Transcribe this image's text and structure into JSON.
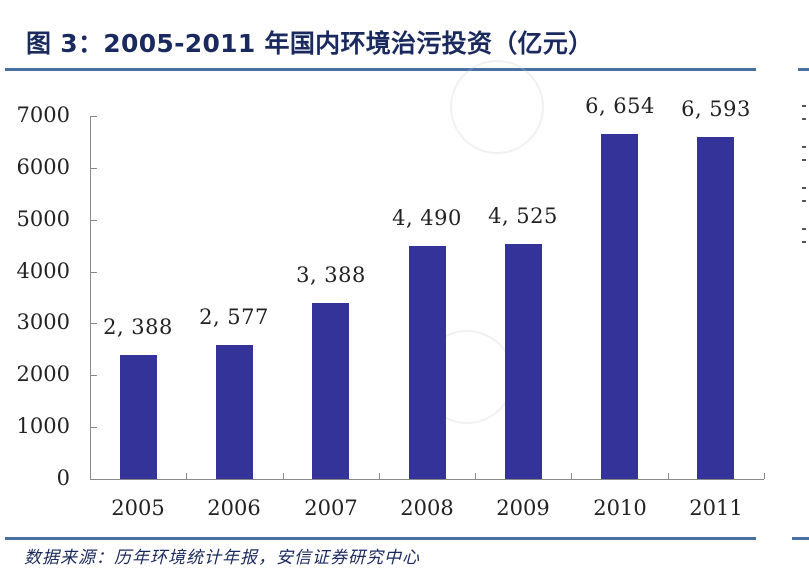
{
  "header": {
    "title": "图 3：2005-2011 年国内环境治污投资（亿元）"
  },
  "footer": {
    "source": "数据来源：历年环境统计年报，安信证券研究中心"
  },
  "colors": {
    "bar": "#333399",
    "rule": "#4a6fa5",
    "title": "#1b2a5e"
  },
  "chart_data": {
    "type": "bar",
    "title": "2005-2011 年国内环境治污投资（亿元）",
    "xlabel": "",
    "ylabel": "亿元",
    "categories": [
      "2005",
      "2006",
      "2007",
      "2008",
      "2009",
      "2010",
      "2011"
    ],
    "values": [
      2388,
      2577,
      3388,
      4490,
      4525,
      6654,
      6593
    ],
    "value_labels": [
      "2, 388",
      "2, 577",
      "3, 388",
      "4, 490",
      "4, 525",
      "6, 654",
      "6, 593"
    ],
    "ylim": [
      0,
      7000
    ],
    "yticks": [
      "0",
      "1000",
      "2000",
      "3000",
      "4000",
      "5000",
      "6000",
      "7000"
    ],
    "grid": false,
    "legend": null
  }
}
